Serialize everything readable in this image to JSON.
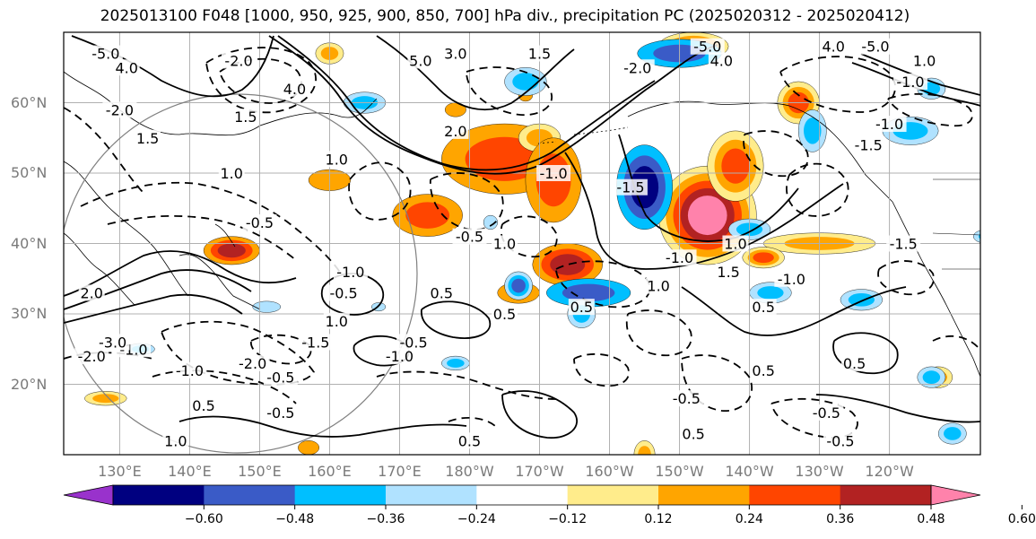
{
  "title": "2025013100 F048 [1000, 950, 925, 900, 850, 700] hPa div., precipitation PC (2025020312 - 2025020412)",
  "axes": {
    "lat_ticks": [
      "60°N",
      "50°N",
      "40°N",
      "30°N",
      "20°N"
    ],
    "lon_ticks": [
      "130°E",
      "140°E",
      "150°E",
      "160°E",
      "170°E",
      "180°W",
      "170°W",
      "160°W",
      "150°W",
      "140°W",
      "130°W",
      "120°W"
    ]
  },
  "colorbar": {
    "tick_labels": [
      "−0.60",
      "−0.48",
      "−0.36",
      "−0.24",
      "−0.12",
      "0.12",
      "0.24",
      "0.36",
      "0.48",
      "0.60"
    ],
    "colors": [
      "#9932cc",
      "#000080",
      "#3a5bc7",
      "#00bfff",
      "#b0e2ff",
      "#ffffff",
      "#ffec8b",
      "#ffa500",
      "#ff4500",
      "#b22222",
      "#ff82ab"
    ]
  },
  "contour_labels": [
    {
      "text": "-5.0",
      "lon": 128,
      "lat": 67
    },
    {
      "text": "4.0",
      "lon": 131,
      "lat": 65
    },
    {
      "text": "-2.0",
      "lon": 130,
      "lat": 59
    },
    {
      "text": "1.5",
      "lon": 134,
      "lat": 55
    },
    {
      "text": "-2.0",
      "lon": 147,
      "lat": 66
    },
    {
      "text": "4.0",
      "lon": 155,
      "lat": 62
    },
    {
      "text": "1.5",
      "lon": 148,
      "lat": 58
    },
    {
      "text": "1.0",
      "lon": 146,
      "lat": 50
    },
    {
      "text": "-0.5",
      "lon": 150,
      "lat": 43
    },
    {
      "text": "1.0",
      "lon": 161,
      "lat": 52
    },
    {
      "text": "5.0",
      "lon": 173,
      "lat": 66
    },
    {
      "text": "3.0",
      "lon": 178,
      "lat": 67
    },
    {
      "text": "1.5",
      "lon": 190,
      "lat": 67
    },
    {
      "text": "2.0",
      "lon": 178,
      "lat": 56
    },
    {
      "text": "-0.5",
      "lon": 180,
      "lat": 41
    },
    {
      "text": "1.0",
      "lon": 185,
      "lat": 40
    },
    {
      "text": "-1.0",
      "lon": 192,
      "lat": 50
    },
    {
      "text": "-1.5",
      "lon": 203,
      "lat": 48
    },
    {
      "text": "-2.0",
      "lon": 204,
      "lat": 65
    },
    {
      "text": "-5.0",
      "lon": 214,
      "lat": 68
    },
    {
      "text": "4.0",
      "lon": 216,
      "lat": 66
    },
    {
      "text": "-1.0",
      "lon": 210,
      "lat": 38
    },
    {
      "text": "1.5",
      "lon": 217,
      "lat": 36
    },
    {
      "text": "1.0",
      "lon": 218,
      "lat": 40
    },
    {
      "text": "-1.0",
      "lon": 226,
      "lat": 35
    },
    {
      "text": "0.5",
      "lon": 222,
      "lat": 31
    },
    {
      "text": "4.0",
      "lon": 232,
      "lat": 68
    },
    {
      "text": "-5.0",
      "lon": 238,
      "lat": 68
    },
    {
      "text": "-1.0",
      "lon": 240,
      "lat": 57
    },
    {
      "text": "-1.5",
      "lon": 242,
      "lat": 40
    },
    {
      "text": "1.0",
      "lon": 245,
      "lat": 66
    },
    {
      "text": "-1.0",
      "lon": 243,
      "lat": 63
    },
    {
      "text": "-1.5",
      "lon": 237,
      "lat": 54
    },
    {
      "text": "-0.5",
      "lon": 162,
      "lat": 33
    },
    {
      "text": "-1.0",
      "lon": 163,
      "lat": 36
    },
    {
      "text": "1.0",
      "lon": 161,
      "lat": 29
    },
    {
      "text": "0.5",
      "lon": 185,
      "lat": 30
    },
    {
      "text": "-0.5",
      "lon": 172,
      "lat": 26
    },
    {
      "text": "-1.0",
      "lon": 170,
      "lat": 24
    },
    {
      "text": "-1.5",
      "lon": 158,
      "lat": 26
    },
    {
      "text": "-2.0",
      "lon": 149,
      "lat": 23
    },
    {
      "text": "-0.5",
      "lon": 153,
      "lat": 21
    },
    {
      "text": "0.5",
      "lon": 142,
      "lat": 17
    },
    {
      "text": "-0.5",
      "lon": 153,
      "lat": 16
    },
    {
      "text": "1.0",
      "lon": 138,
      "lat": 12
    },
    {
      "text": "0.5",
      "lon": 180,
      "lat": 12
    },
    {
      "text": "-1.0",
      "lon": 132,
      "lat": 25
    },
    {
      "text": "-3.0",
      "lon": 129,
      "lat": 26
    },
    {
      "text": "2.0",
      "lon": 126,
      "lat": 33
    },
    {
      "text": "-2.0",
      "lon": 126,
      "lat": 24
    },
    {
      "text": "-1.0",
      "lon": 140,
      "lat": 22
    },
    {
      "text": "0.5",
      "lon": 222,
      "lat": 22
    },
    {
      "text": "-0.5",
      "lon": 211,
      "lat": 18
    },
    {
      "text": "0.5",
      "lon": 212,
      "lat": 13
    },
    {
      "text": "-0.5",
      "lon": 231,
      "lat": 16
    },
    {
      "text": "-0.5",
      "lon": 233,
      "lat": 12
    },
    {
      "text": "0.5",
      "lon": 235,
      "lat": 23
    },
    {
      "text": "1.0",
      "lon": 207,
      "lat": 34
    },
    {
      "text": "0.5",
      "lon": 176,
      "lat": 33
    },
    {
      "text": "0.5",
      "lon": 196,
      "lat": 31
    }
  ]
}
